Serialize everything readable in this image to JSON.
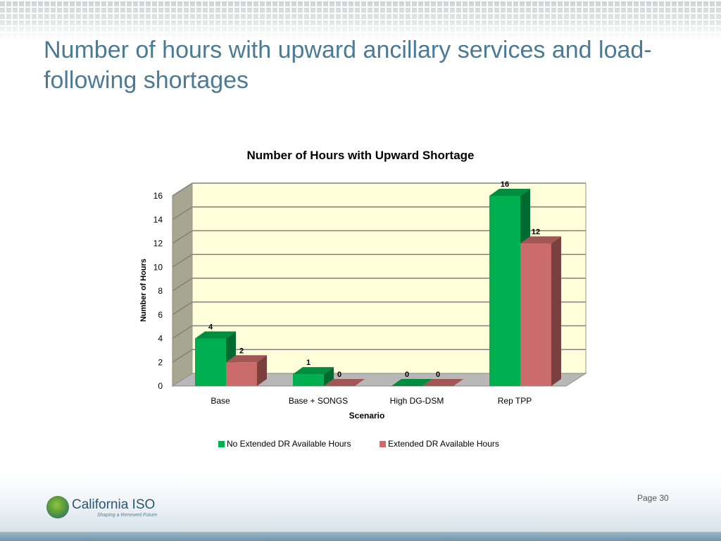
{
  "slide": {
    "title": "Number of hours with upward ancillary services and load-following shortages",
    "page_label": "Page 30"
  },
  "logo": {
    "name": "California ISO",
    "tagline": "Shaping a Renewed Future"
  },
  "colors": {
    "title": "#4a7a96",
    "no_extended_dr": "#00b050",
    "extended_dr": "#cc6b6b",
    "plot_back_wall": "#ffffd9",
    "plot_side_wall": "#a7a791",
    "plot_floor": "#b8b8b8"
  },
  "chart_data": {
    "type": "bar",
    "style": "3d-clustered-column",
    "title": "Number of Hours with Upward Shortage",
    "xlabel": "Scenario",
    "ylabel": "Number of Hours",
    "categories": [
      "Base",
      "Base + SONGS",
      "High DG-DSM",
      "Rep TPP"
    ],
    "series": [
      {
        "name": "No Extended DR Available Hours",
        "values": [
          4,
          1,
          0,
          16
        ]
      },
      {
        "name": "Extended DR Available Hours",
        "values": [
          2,
          0,
          0,
          12
        ]
      }
    ],
    "ylim": [
      0,
      16
    ],
    "yticks": [
      0,
      2,
      4,
      6,
      8,
      10,
      12,
      14,
      16
    ],
    "grid": true,
    "legend_position": "bottom",
    "data_labels": true
  }
}
